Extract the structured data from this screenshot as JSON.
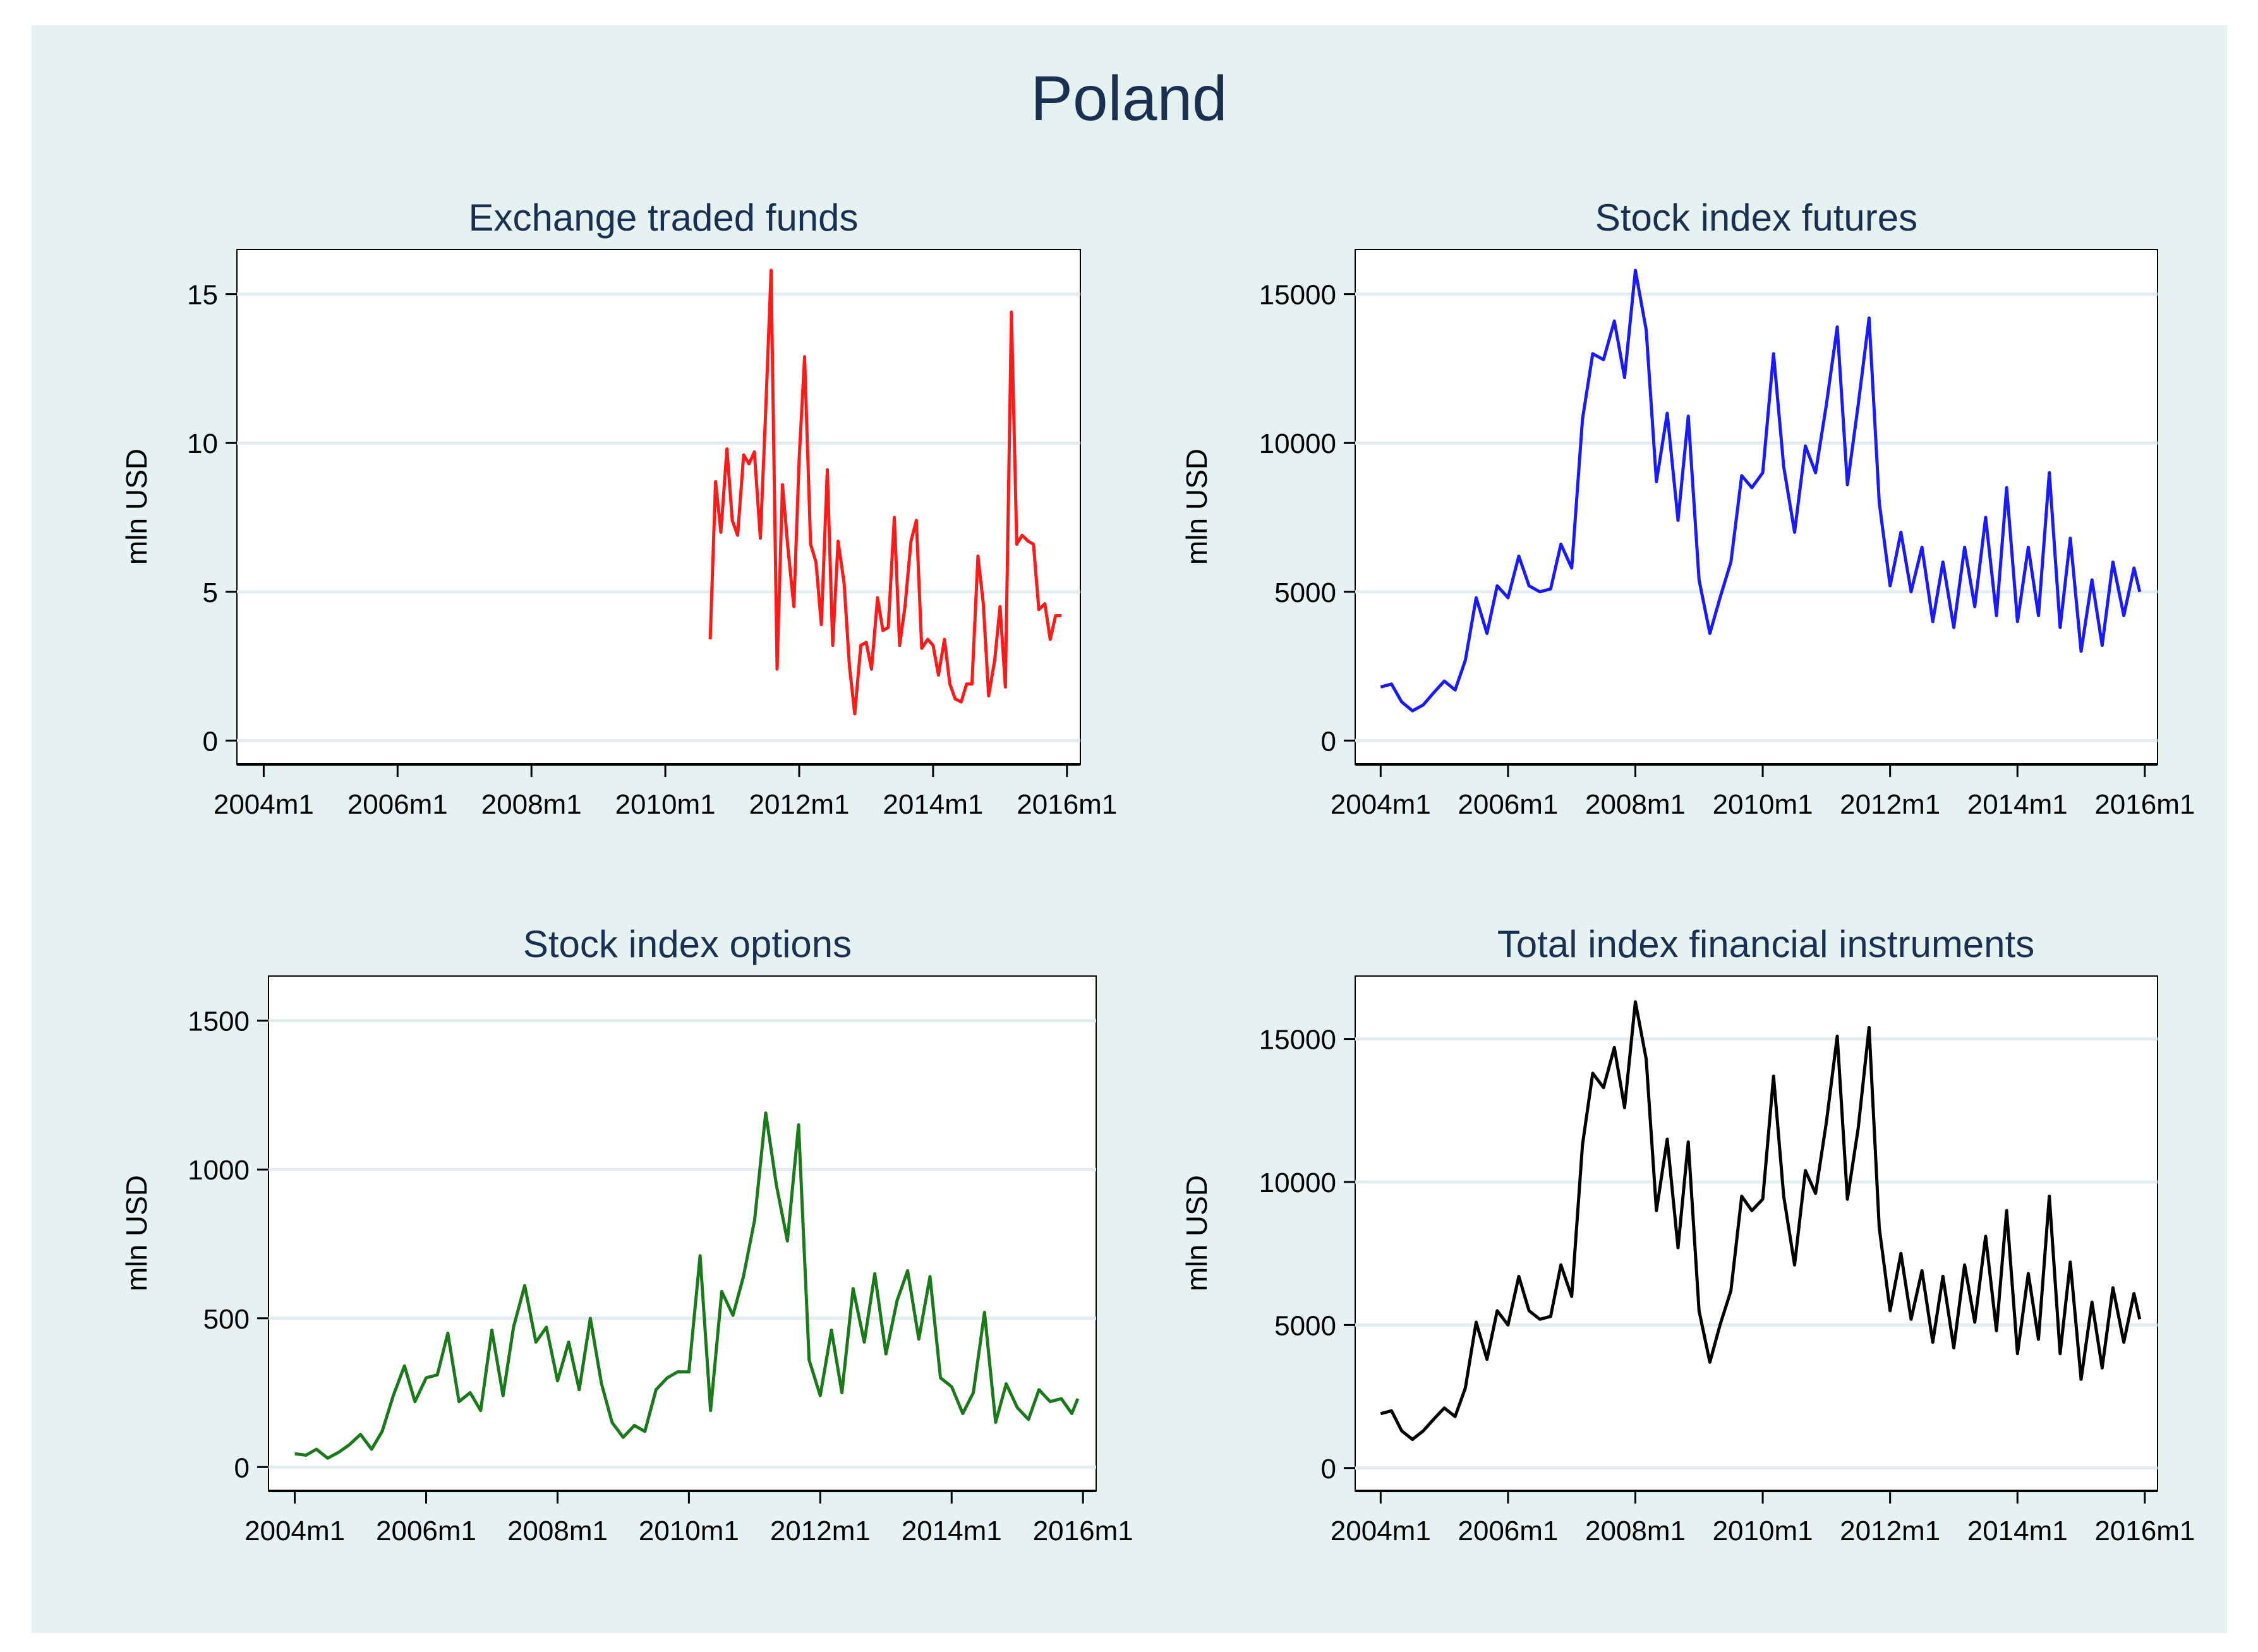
{
  "figure": {
    "title": "Poland"
  },
  "chart_data": [
    {
      "type": "line",
      "title": "Exchange traded funds",
      "ylabel": "mln USD",
      "xlabel": "",
      "color": "#ff1a1a",
      "ylim": [
        -0.8,
        16.5
      ],
      "yticks": [
        0,
        5,
        10,
        15
      ],
      "ytick_labels": [
        "0",
        "5",
        "10",
        "15"
      ],
      "xlim": [
        2003.6,
        2016.2
      ],
      "xticks": [
        2004,
        2006,
        2008,
        2010,
        2012,
        2014,
        2016
      ],
      "xtick_labels": [
        "2004m1",
        "2006m1",
        "2008m1",
        "2010m1",
        "2012m1",
        "2014m1",
        "2016m1"
      ],
      "x": [
        2010.67,
        2010.75,
        2010.83,
        2010.92,
        2011.0,
        2011.08,
        2011.17,
        2011.25,
        2011.33,
        2011.42,
        2011.5,
        2011.58,
        2011.67,
        2011.75,
        2011.83,
        2011.92,
        2012.0,
        2012.08,
        2012.17,
        2012.25,
        2012.33,
        2012.42,
        2012.5,
        2012.58,
        2012.67,
        2012.75,
        2012.83,
        2012.92,
        2013.0,
        2013.08,
        2013.17,
        2013.25,
        2013.33,
        2013.42,
        2013.5,
        2013.58,
        2013.67,
        2013.75,
        2013.83,
        2013.92,
        2014.0,
        2014.08,
        2014.17,
        2014.25,
        2014.33,
        2014.42,
        2014.5,
        2014.58,
        2014.67,
        2014.75,
        2014.83,
        2014.92,
        2015.0,
        2015.08,
        2015.17,
        2015.25,
        2015.33,
        2015.42,
        2015.5,
        2015.58,
        2015.67,
        2015.75,
        2015.83,
        2015.92
      ],
      "values": [
        3.4,
        8.7,
        7.0,
        9.8,
        7.4,
        6.9,
        9.6,
        9.3,
        9.7,
        6.8,
        11.1,
        15.8,
        2.4,
        8.6,
        6.5,
        4.5,
        9.5,
        12.9,
        6.6,
        6.0,
        3.9,
        9.1,
        3.2,
        6.7,
        5.3,
        2.5,
        0.9,
        3.2,
        3.3,
        2.4,
        4.8,
        3.7,
        3.8,
        7.5,
        3.2,
        4.5,
        6.7,
        7.4,
        3.1,
        3.4,
        3.2,
        2.2,
        3.4,
        1.9,
        1.4,
        1.3,
        1.9,
        1.9,
        6.2,
        4.6,
        1.5,
        2.7,
        4.5,
        1.8,
        14.4,
        6.6,
        6.9,
        6.7,
        6.6,
        4.4,
        4.6,
        3.4,
        4.2,
        4.2
      ]
    },
    {
      "type": "line",
      "title": "Stock index futures",
      "ylabel": "mln USD",
      "xlabel": "",
      "color": "#1a1aff",
      "ylim": [
        -800,
        16500
      ],
      "yticks": [
        0,
        5000,
        10000,
        15000
      ],
      "ytick_labels": [
        "0",
        "5000",
        "10000",
        "15000"
      ],
      "xlim": [
        2003.6,
        2016.2
      ],
      "xticks": [
        2004,
        2006,
        2008,
        2010,
        2012,
        2014,
        2016
      ],
      "xtick_labels": [
        "2004m1",
        "2006m1",
        "2008m1",
        "2010m1",
        "2012m1",
        "2014m1",
        "2016m1"
      ],
      "x": [
        2004.0,
        2004.17,
        2004.33,
        2004.5,
        2004.67,
        2004.83,
        2005.0,
        2005.17,
        2005.33,
        2005.5,
        2005.67,
        2005.83,
        2006.0,
        2006.17,
        2006.33,
        2006.5,
        2006.67,
        2006.83,
        2007.0,
        2007.17,
        2007.33,
        2007.5,
        2007.67,
        2007.83,
        2008.0,
        2008.17,
        2008.33,
        2008.5,
        2008.67,
        2008.83,
        2009.0,
        2009.17,
        2009.33,
        2009.5,
        2009.67,
        2009.83,
        2010.0,
        2010.17,
        2010.33,
        2010.5,
        2010.67,
        2010.83,
        2011.0,
        2011.17,
        2011.33,
        2011.5,
        2011.67,
        2011.83,
        2012.0,
        2012.17,
        2012.33,
        2012.5,
        2012.67,
        2012.83,
        2013.0,
        2013.17,
        2013.33,
        2013.5,
        2013.67,
        2013.83,
        2014.0,
        2014.17,
        2014.33,
        2014.5,
        2014.67,
        2014.83,
        2015.0,
        2015.17,
        2015.33,
        2015.5,
        2015.67,
        2015.83,
        2015.92
      ],
      "values": [
        1800,
        1900,
        1300,
        1000,
        1200,
        1600,
        2000,
        1700,
        2700,
        4800,
        3600,
        5200,
        4800,
        6200,
        5200,
        5000,
        5100,
        6600,
        5800,
        10800,
        13000,
        12800,
        14100,
        12200,
        15800,
        13800,
        8700,
        11000,
        7400,
        10900,
        5400,
        3600,
        4800,
        6000,
        8900,
        8500,
        9000,
        13000,
        9200,
        7000,
        9900,
        9000,
        11300,
        13900,
        8600,
        11300,
        14200,
        8000,
        5200,
        7000,
        5000,
        6500,
        4000,
        6000,
        3800,
        6500,
        4500,
        7500,
        4200,
        8500,
        4000,
        6500,
        4200,
        9000,
        3800,
        6800,
        3000,
        5400,
        3200,
        6000,
        4200,
        5800,
        5000
      ]
    },
    {
      "type": "line",
      "title": "Stock index options",
      "ylabel": "mln USD",
      "xlabel": "",
      "color": "#1a7a1a",
      "ylim": [
        -80,
        1650
      ],
      "yticks": [
        0,
        500,
        1000,
        1500
      ],
      "ytick_labels": [
        "0",
        "500",
        "1000",
        "1500"
      ],
      "xlim": [
        2003.6,
        2016.2
      ],
      "xticks": [
        2004,
        2006,
        2008,
        2010,
        2012,
        2014,
        2016
      ],
      "xtick_labels": [
        "2004m1",
        "2006m1",
        "2008m1",
        "2010m1",
        "2012m1",
        "2014m1",
        "2016m1"
      ],
      "x": [
        2004.0,
        2004.17,
        2004.33,
        2004.5,
        2004.67,
        2004.83,
        2005.0,
        2005.17,
        2005.33,
        2005.5,
        2005.67,
        2005.83,
        2006.0,
        2006.17,
        2006.33,
        2006.5,
        2006.67,
        2006.83,
        2007.0,
        2007.17,
        2007.33,
        2007.5,
        2007.67,
        2007.83,
        2008.0,
        2008.17,
        2008.33,
        2008.5,
        2008.67,
        2008.83,
        2009.0,
        2009.17,
        2009.33,
        2009.5,
        2009.67,
        2009.83,
        2010.0,
        2010.17,
        2010.33,
        2010.5,
        2010.67,
        2010.83,
        2011.0,
        2011.17,
        2011.33,
        2011.5,
        2011.67,
        2011.83,
        2012.0,
        2012.17,
        2012.33,
        2012.5,
        2012.67,
        2012.83,
        2013.0,
        2013.17,
        2013.33,
        2013.5,
        2013.67,
        2013.83,
        2014.0,
        2014.17,
        2014.33,
        2014.5,
        2014.67,
        2014.83,
        2015.0,
        2015.17,
        2015.33,
        2015.5,
        2015.67,
        2015.83,
        2015.92
      ],
      "values": [
        45,
        40,
        60,
        30,
        50,
        75,
        110,
        60,
        120,
        240,
        340,
        220,
        300,
        310,
        450,
        220,
        250,
        190,
        460,
        240,
        470,
        610,
        420,
        470,
        290,
        420,
        260,
        500,
        280,
        150,
        100,
        140,
        120,
        260,
        300,
        320,
        320,
        710,
        190,
        590,
        510,
        640,
        830,
        1190,
        950,
        760,
        1150,
        360,
        240,
        460,
        250,
        600,
        420,
        650,
        380,
        560,
        660,
        430,
        640,
        300,
        270,
        180,
        250,
        520,
        150,
        280,
        200,
        160,
        260,
        220,
        230,
        180,
        230
      ]
    },
    {
      "type": "line",
      "title": "Total index financial instruments",
      "ylabel": "mln USD",
      "xlabel": "",
      "color": "#000000",
      "ylim": [
        -800,
        17200
      ],
      "yticks": [
        0,
        5000,
        10000,
        15000
      ],
      "ytick_labels": [
        "0",
        "5000",
        "10000",
        "15000"
      ],
      "xlim": [
        2003.6,
        2016.2
      ],
      "xticks": [
        2004,
        2006,
        2008,
        2010,
        2012,
        2014,
        2016
      ],
      "xtick_labels": [
        "2004m1",
        "2006m1",
        "2008m1",
        "2010m1",
        "2012m1",
        "2014m1",
        "2016m1"
      ],
      "x": [
        2004.0,
        2004.17,
        2004.33,
        2004.5,
        2004.67,
        2004.83,
        2005.0,
        2005.17,
        2005.33,
        2005.5,
        2005.67,
        2005.83,
        2006.0,
        2006.17,
        2006.33,
        2006.5,
        2006.67,
        2006.83,
        2007.0,
        2007.17,
        2007.33,
        2007.5,
        2007.67,
        2007.83,
        2008.0,
        2008.17,
        2008.33,
        2008.5,
        2008.67,
        2008.83,
        2009.0,
        2009.17,
        2009.33,
        2009.5,
        2009.67,
        2009.83,
        2010.0,
        2010.17,
        2010.33,
        2010.5,
        2010.67,
        2010.83,
        2011.0,
        2011.17,
        2011.33,
        2011.5,
        2011.67,
        2011.83,
        2012.0,
        2012.17,
        2012.33,
        2012.5,
        2012.67,
        2012.83,
        2013.0,
        2013.17,
        2013.33,
        2013.5,
        2013.67,
        2013.83,
        2014.0,
        2014.17,
        2014.33,
        2014.5,
        2014.67,
        2014.83,
        2015.0,
        2015.17,
        2015.33,
        2015.5,
        2015.67,
        2015.83,
        2015.92
      ],
      "values": [
        1900,
        2000,
        1300,
        1000,
        1300,
        1700,
        2100,
        1800,
        2800,
        5100,
        3800,
        5500,
        5000,
        6700,
        5500,
        5200,
        5300,
        7100,
        6000,
        11300,
        13800,
        13300,
        14700,
        12600,
        16300,
        14300,
        9000,
        11500,
        7700,
        11400,
        5500,
        3700,
        5000,
        6200,
        9500,
        9000,
        9400,
        13700,
        9500,
        7100,
        10400,
        9600,
        12100,
        15100,
        9400,
        11900,
        15400,
        8400,
        5500,
        7500,
        5200,
        6900,
        4400,
        6700,
        4200,
        7100,
        5100,
        8100,
        4800,
        9000,
        4000,
        6800,
        4500,
        9500,
        4000,
        7200,
        3100,
        5800,
        3500,
        6300,
        4400,
        6100,
        5200
      ]
    }
  ]
}
